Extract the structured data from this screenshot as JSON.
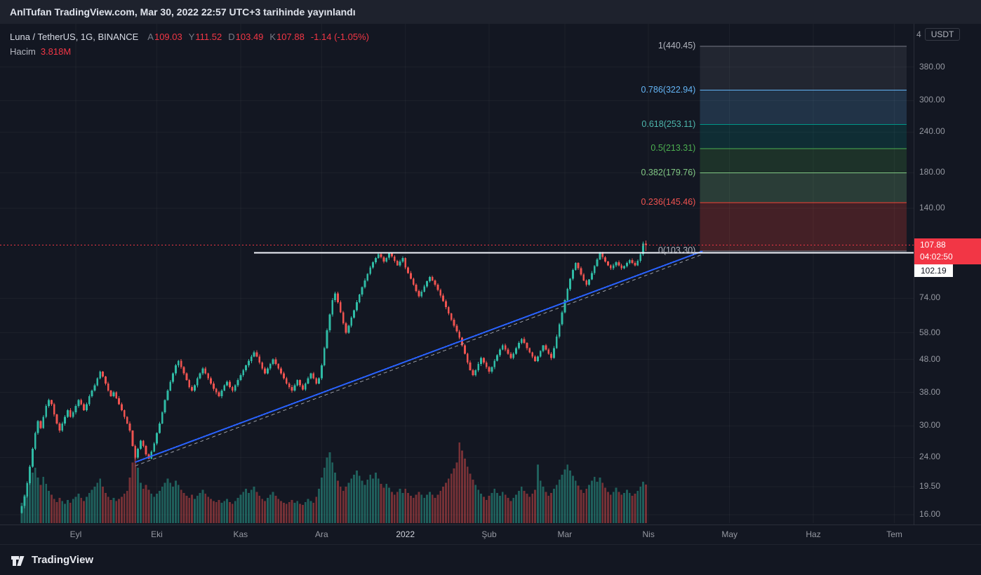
{
  "published_bar": {
    "text": "AnlTufan TradingView.com, Mar 30, 2022 22:57 UTC+3 tarihinde yayınlandı"
  },
  "legend": {
    "symbol": "Luna / TetherUS, 1G, BINANCE",
    "ohlc": [
      {
        "label": "A",
        "value": "109.03"
      },
      {
        "label": "Y",
        "value": "111.52"
      },
      {
        "label": "D",
        "value": "103.49"
      },
      {
        "label": "K",
        "value": "107.88"
      }
    ],
    "change": "-1.14 (-1.05%)",
    "volume_label": "Hacim",
    "volume_value": "3.818M"
  },
  "price_scale": {
    "top_partial": "4",
    "currency_button": "USDT",
    "price_badge": {
      "price": "107.88",
      "countdown": "04:02:50"
    },
    "white_badge": "102.19"
  },
  "footer": {
    "brand": "TradingView"
  },
  "colors": {
    "background": "#131722",
    "header_bg": "#1e222d",
    "border": "#2a2e39",
    "text": "#d1d4dc",
    "text_gray": "#9598a1",
    "text_dim": "#787b86",
    "up": "#2fbba5",
    "down": "#ef5350",
    "up_vol": "rgba(47,187,165,0.45)",
    "down_vol": "rgba(239,83,80,0.45)",
    "accent_red": "#f23645",
    "trend_blue": "#2962ff",
    "white_line": "#f0f3fa"
  },
  "chart_data": {
    "type": "candlestick",
    "title": "Luna / TetherUS, 1G, BINANCE",
    "scale": "log",
    "current_price": 107.88,
    "volume_total_label": "3.818M",
    "y_ticks": [
      380,
      300,
      240,
      180,
      140,
      74,
      58,
      48,
      38,
      30,
      24,
      19.5,
      16
    ],
    "x_ticks": [
      {
        "text": "Eyl",
        "day": 20
      },
      {
        "text": "Eki",
        "day": 50
      },
      {
        "text": "Kas",
        "day": 81
      },
      {
        "text": "Ara",
        "day": 111
      },
      {
        "text": "2022",
        "day": 142,
        "year": true
      },
      {
        "text": "Şub",
        "day": 173
      },
      {
        "text": "Mar",
        "day": 201
      },
      {
        "text": "Nis",
        "day": 232
      },
      {
        "text": "May",
        "day": 262
      },
      {
        "text": "Haz",
        "day": 293
      },
      {
        "text": "Tem",
        "day": 323
      }
    ],
    "first_open": 16.2,
    "closes": [
      17.0,
      18.2,
      20.0,
      22.5,
      25.5,
      28.5,
      31.0,
      29.5,
      32.0,
      34.5,
      36.0,
      35.0,
      32.5,
      30.5,
      29.0,
      30.5,
      32.0,
      33.5,
      32.0,
      33.0,
      34.5,
      36.0,
      35.0,
      33.5,
      35.0,
      37.0,
      38.5,
      40.0,
      42.0,
      44.0,
      42.5,
      40.5,
      38.5,
      37.0,
      38.0,
      36.5,
      35.0,
      33.5,
      32.0,
      30.5,
      29.0,
      26.0,
      24.0,
      25.5,
      27.0,
      26.0,
      24.5,
      23.8,
      25.0,
      26.5,
      28.5,
      30.5,
      33.0,
      36.0,
      38.5,
      41.0,
      43.5,
      46.0,
      47.5,
      45.5,
      43.5,
      41.5,
      39.5,
      38.5,
      40.0,
      42.0,
      43.5,
      45.0,
      43.5,
      42.0,
      40.5,
      39.0,
      38.0,
      37.0,
      38.5,
      40.0,
      41.0,
      39.5,
      38.5,
      40.0,
      41.5,
      43.0,
      44.5,
      46.0,
      47.5,
      49.0,
      50.5,
      49.0,
      47.0,
      45.0,
      43.5,
      45.0,
      46.5,
      48.0,
      46.5,
      45.0,
      43.5,
      42.0,
      40.5,
      39.5,
      38.5,
      40.0,
      41.5,
      40.0,
      38.8,
      40.5,
      42.0,
      43.5,
      42.0,
      40.5,
      42.0,
      46.0,
      52.0,
      59.0,
      66.0,
      73.0,
      76.5,
      72.0,
      67.0,
      62.0,
      58.0,
      61.0,
      64.5,
      68.0,
      72.0,
      76.0,
      80.0,
      84.0,
      88.0,
      92.0,
      95.5,
      98.5,
      101.0,
      99.0,
      96.0,
      98.5,
      101.5,
      99.5,
      96.5,
      93.5,
      96.0,
      98.5,
      92.0,
      88.5,
      85.0,
      81.5,
      78.0,
      75.0,
      77.5,
      80.5,
      83.5,
      86.0,
      84.0,
      81.5,
      78.5,
      75.5,
      72.5,
      69.5,
      66.5,
      63.5,
      61.0,
      58.5,
      56.0,
      53.0,
      50.0,
      47.0,
      44.5,
      43.0,
      44.5,
      46.5,
      48.5,
      47.0,
      45.5,
      44.0,
      45.5,
      47.5,
      49.5,
      51.5,
      53.0,
      51.5,
      50.0,
      48.5,
      50.0,
      52.0,
      54.0,
      55.5,
      54.0,
      52.0,
      50.5,
      49.0,
      47.5,
      49.0,
      51.0,
      53.0,
      51.5,
      50.0,
      48.5,
      52.0,
      56.5,
      61.5,
      67.0,
      73.0,
      79.0,
      85.0,
      90.5,
      95.0,
      91.5,
      87.5,
      84.0,
      81.5,
      84.5,
      88.5,
      93.0,
      97.5,
      101.5,
      99.0,
      96.0,
      93.5,
      91.5,
      93.5,
      95.5,
      93.5,
      91.5,
      93.0,
      95.0,
      97.0,
      95.0,
      93.5,
      96.5,
      101.0,
      109.02,
      107.88
    ],
    "volumes_m": [
      2.0,
      2.8,
      3.5,
      4.2,
      5.0,
      5.5,
      4.5,
      3.8,
      4.6,
      3.9,
      3.2,
      2.8,
      2.4,
      2.1,
      2.5,
      2.2,
      1.9,
      2.3,
      2.0,
      2.4,
      2.6,
      2.9,
      2.5,
      2.2,
      2.6,
      3.0,
      3.3,
      3.6,
      4.0,
      4.4,
      3.6,
      3.0,
      2.6,
      2.3,
      2.5,
      2.2,
      2.4,
      2.6,
      2.9,
      3.2,
      4.5,
      6.0,
      7.5,
      5.5,
      4.0,
      3.4,
      3.8,
      3.3,
      2.9,
      2.6,
      2.9,
      3.2,
      3.6,
      4.0,
      4.4,
      4.0,
      3.6,
      4.2,
      3.8,
      3.3,
      3.0,
      2.7,
      2.5,
      2.8,
      2.4,
      2.7,
      3.0,
      3.3,
      2.9,
      2.6,
      2.4,
      2.2,
      2.1,
      2.3,
      2.0,
      2.2,
      2.4,
      2.1,
      1.9,
      2.2,
      2.5,
      2.8,
      3.1,
      3.4,
      3.0,
      3.3,
      3.6,
      3.1,
      2.7,
      2.4,
      2.2,
      2.5,
      2.8,
      3.1,
      2.7,
      2.4,
      2.2,
      2.0,
      1.9,
      2.1,
      2.3,
      2.0,
      2.2,
      1.9,
      1.8,
      2.1,
      2.4,
      2.2,
      2.0,
      2.6,
      3.4,
      4.5,
      5.5,
      6.5,
      7.0,
      6.0,
      5.0,
      4.2,
      3.6,
      3.2,
      3.6,
      4.0,
      4.4,
      4.8,
      5.2,
      4.7,
      4.2,
      3.8,
      4.3,
      4.8,
      4.4,
      5.0,
      4.4,
      3.9,
      3.5,
      3.9,
      3.5,
      3.1,
      2.8,
      3.1,
      3.4,
      3.0,
      3.4,
      3.0,
      2.7,
      2.5,
      2.8,
      3.1,
      2.8,
      2.5,
      2.8,
      3.1,
      2.8,
      2.5,
      2.8,
      3.2,
      3.6,
      4.0,
      4.4,
      4.9,
      5.4,
      6.0,
      8.0,
      7.2,
      6.4,
      5.6,
      4.9,
      4.3,
      3.8,
      3.3,
      2.9,
      2.6,
      2.3,
      2.7,
      3.0,
      3.4,
      3.0,
      2.7,
      3.1,
      2.8,
      2.5,
      2.2,
      2.5,
      2.8,
      3.2,
      3.6,
      3.2,
      2.9,
      2.6,
      2.9,
      3.3,
      5.8,
      4.2,
      3.6,
      3.1,
      2.7,
      3.0,
      3.4,
      3.8,
      4.3,
      4.8,
      5.3,
      5.8,
      5.2,
      4.7,
      4.2,
      3.7,
      3.3,
      3.0,
      3.4,
      3.8,
      4.2,
      4.6,
      4.1,
      4.5,
      4.0,
      3.5,
      3.1,
      2.8,
      3.1,
      3.5,
      3.1,
      2.8,
      3.0,
      3.3,
      3.0,
      2.7,
      2.9,
      3.2,
      3.6,
      4.1,
      3.818
    ],
    "last_candle": {
      "open": 109.03,
      "high": 111.52,
      "low": 103.49,
      "close": 107.88
    },
    "fib": {
      "from_day": 251,
      "to_x": 1292,
      "levels": [
        {
          "level": "1",
          "price": 440.45,
          "label": "1(440.45)",
          "color": "#787b86",
          "label_color": "#b2b5be"
        },
        {
          "level": "0.786",
          "price": 322.94,
          "label": "0.786(322.94)",
          "color": "#64b5f6",
          "label_color": "#64b5f6"
        },
        {
          "level": "0.618",
          "price": 253.11,
          "label": "0.618(253.11)",
          "color": "#009688",
          "label_color": "#4db6ac"
        },
        {
          "level": "0.5",
          "price": 213.31,
          "label": "0.5(213.31)",
          "color": "#4caf50",
          "label_color": "#4caf50"
        },
        {
          "level": "0.382",
          "price": 179.76,
          "label": "0.382(179.76)",
          "color": "#81c784",
          "label_color": "#81c784"
        },
        {
          "level": "0.236",
          "price": 145.46,
          "label": "0.236(145.46)",
          "color": "#f44336",
          "label_color": "#ef5350"
        },
        {
          "level": "0",
          "price": 103.3,
          "label": "0(103.30)",
          "color": "#787b86",
          "label_color": "#b2b5be"
        }
      ],
      "zones": [
        "rgba(120,128,140,0.15)",
        "rgba(100,181,246,0.18)",
        "rgba(0,150,136,0.18)",
        "rgba(76,175,80,0.18)",
        "rgba(129,199,132,0.22)",
        "rgba(244,67,54,0.22)"
      ]
    },
    "trendline": {
      "from_day": 42,
      "from_price": 23.2,
      "to_day": 252,
      "to_price": 103.3
    },
    "dashed_line": {
      "from_day": 42,
      "from_price": 22.6,
      "to_day": 252,
      "to_price": 101.0
    },
    "white_line": {
      "price": 102.19,
      "from_day": 86
    }
  }
}
